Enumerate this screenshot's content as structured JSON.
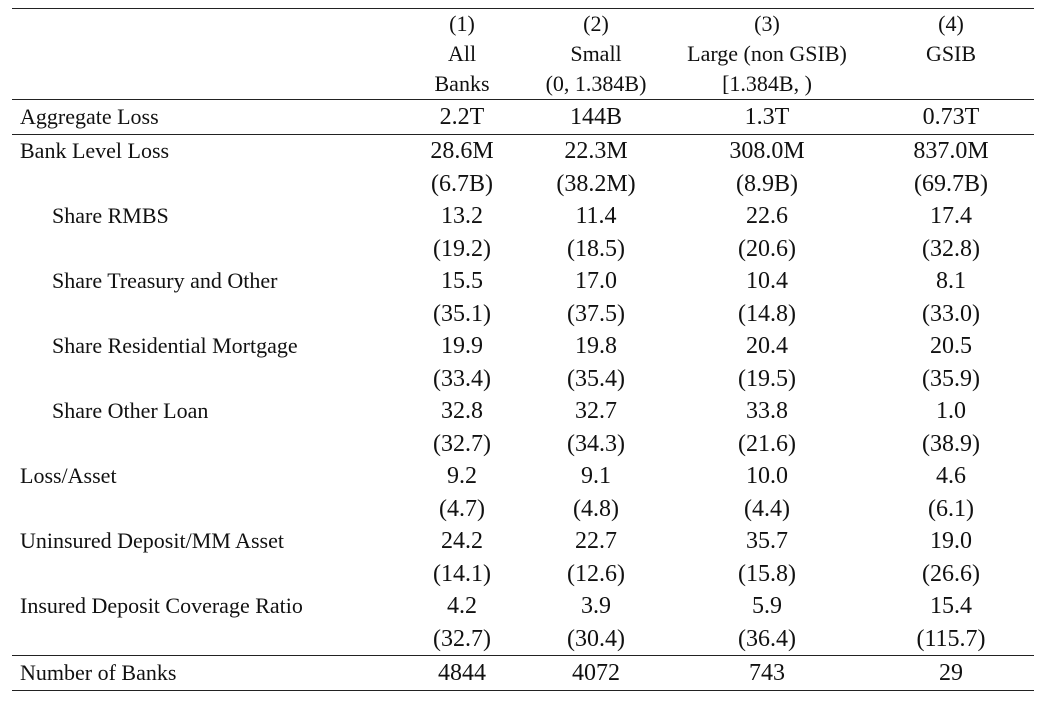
{
  "columns": [
    {
      "number": "(1)",
      "line1": "All",
      "line2": "Banks"
    },
    {
      "number": "(2)",
      "line1": "Small",
      "line2": "(0, 1.384B)"
    },
    {
      "number": "(3)",
      "line1": "Large (non GSIB)",
      "line2": "[1.384B, )"
    },
    {
      "number": "(4)",
      "line1": "GSIB",
      "line2": ""
    }
  ],
  "rows": {
    "aggregate_loss": {
      "label": "Aggregate Loss",
      "values": [
        "2.2T",
        "144B",
        "1.3T",
        "0.73T"
      ]
    },
    "bank_level_loss": {
      "label": "Bank Level Loss",
      "values": [
        "28.6M",
        "22.3M",
        "308.0M",
        "837.0M"
      ],
      "sd": [
        "(6.7B)",
        "(38.2M)",
        "(8.9B)",
        "(69.7B)"
      ]
    },
    "share_rmbs": {
      "label": "Share RMBS",
      "values": [
        "13.2",
        "11.4",
        "22.6",
        "17.4"
      ],
      "sd": [
        "(19.2)",
        "(18.5)",
        "(20.6)",
        "(32.8)"
      ]
    },
    "share_treasury": {
      "label": "Share Treasury and Other",
      "values": [
        "15.5",
        "17.0",
        "10.4",
        "8.1"
      ],
      "sd": [
        "(35.1)",
        "(37.5)",
        "(14.8)",
        "(33.0)"
      ]
    },
    "share_res_mortgage": {
      "label": "Share Residential Mortgage",
      "values": [
        "19.9",
        "19.8",
        "20.4",
        "20.5"
      ],
      "sd": [
        "(33.4)",
        "(35.4)",
        "(19.5)",
        "(35.9)"
      ]
    },
    "share_other_loan": {
      "label": "Share Other Loan",
      "values": [
        "32.8",
        "32.7",
        "33.8",
        "1.0"
      ],
      "sd": [
        "(32.7)",
        "(34.3)",
        "(21.6)",
        "(38.9)"
      ]
    },
    "loss_asset": {
      "label": "Loss/Asset",
      "values": [
        "9.2",
        "9.1",
        "10.0",
        "4.6"
      ],
      "sd": [
        "(4.7)",
        "(4.8)",
        "(4.4)",
        "(6.1)"
      ]
    },
    "uninsured_deposit": {
      "label": "Uninsured Deposit/MM Asset",
      "values": [
        "24.2",
        "22.7",
        "35.7",
        "19.0"
      ],
      "sd": [
        "(14.1)",
        "(12.6)",
        "(15.8)",
        "(26.6)"
      ]
    },
    "insured_coverage": {
      "label": "Insured Deposit Coverage Ratio",
      "values": [
        "4.2",
        "3.9",
        "5.9",
        "15.4"
      ],
      "sd": [
        "(32.7)",
        "(30.4)",
        "(36.4)",
        "(115.7)"
      ]
    },
    "number_of_banks": {
      "label": "Number of Banks",
      "values": [
        "4844",
        "4072",
        "743",
        "29"
      ]
    }
  }
}
